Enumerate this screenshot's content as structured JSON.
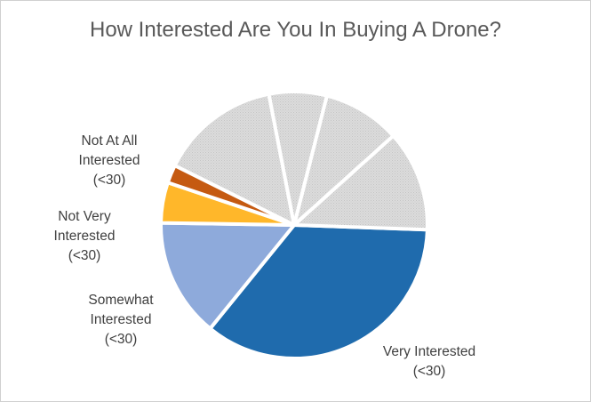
{
  "chart_data": {
    "type": "pie",
    "title": "How Interested Are You In Buying A Drone?",
    "slices": [
      {
        "label": "Very Interested (<30)",
        "value": 35.3,
        "color": "#1f6bad"
      },
      {
        "label": "Somewhat Interested (<30)",
        "value": 14.4,
        "color": "#8eaadb"
      },
      {
        "label": "Not Very Interested (<30)",
        "value": 4.9,
        "color": "#ffb72a"
      },
      {
        "label": "Not At All Interested (<30)",
        "value": 2.2,
        "color": "#c55a11"
      },
      {
        "label": "",
        "value": 14.6,
        "color": "#d9d9d9"
      },
      {
        "label": "",
        "value": 7.0,
        "color": "#d9d9d9"
      },
      {
        "label": "",
        "value": 9.4,
        "color": "#d9d9d9"
      },
      {
        "label": "",
        "value": 12.2,
        "color": "#d9d9d9"
      }
    ],
    "labels": {
      "very": [
        "Very Interested",
        "(<30)"
      ],
      "somewhat": [
        "Somewhat",
        "Interested",
        "(<30)"
      ],
      "notvery": [
        "Not Very",
        "Interested",
        "(<30)"
      ],
      "notatall": [
        "Not At All",
        "Interested",
        "(<30)"
      ]
    }
  }
}
